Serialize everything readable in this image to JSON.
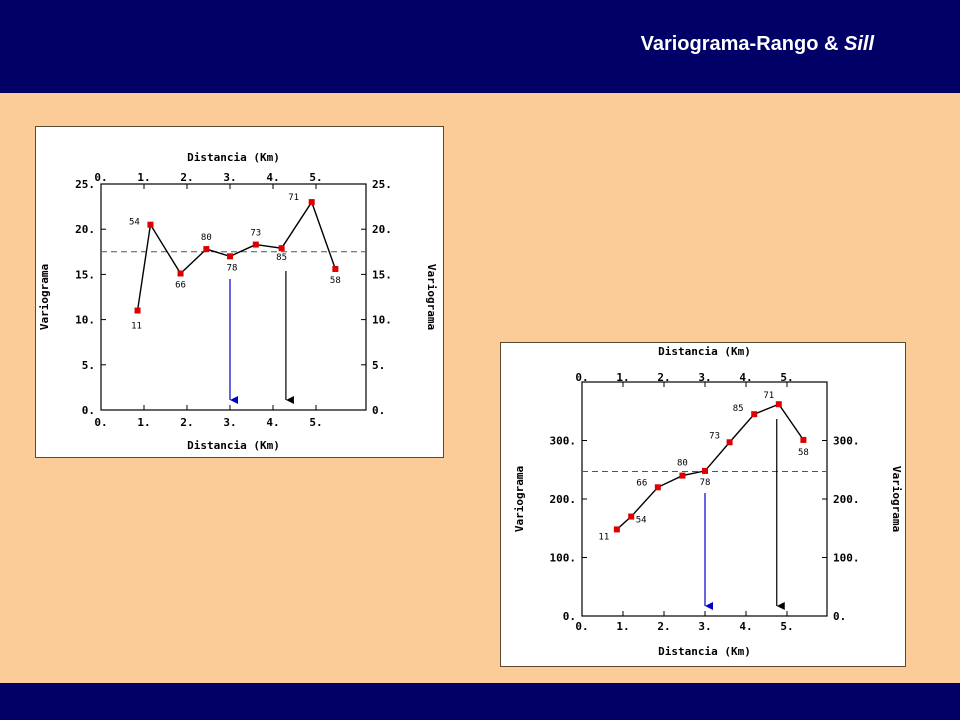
{
  "slide": {
    "title_main": "Variograma-Rango & ",
    "title_italic": "Sill"
  },
  "colors": {
    "header_bg": "#000066",
    "slide_bg": "#fccc98",
    "point": "#dd0000",
    "range_arrow": "#0000cc",
    "sill_arrow": "#000000"
  },
  "chart_data": [
    {
      "type": "line",
      "xlabel": "Distancia (Km)",
      "ylabel": "Variograma",
      "xlim": [
        0,
        6
      ],
      "ylim": [
        0,
        25
      ],
      "x_ticks": [
        "0.",
        "1.",
        "2.",
        "3.",
        "4.",
        "5."
      ],
      "y_ticks": [
        "0.",
        "5.",
        "10.",
        "15.",
        "20.",
        "25."
      ],
      "grid": false,
      "points": [
        {
          "x": 0.85,
          "y": 11.0,
          "label": "11"
        },
        {
          "x": 1.15,
          "y": 20.5,
          "label": "54"
        },
        {
          "x": 1.85,
          "y": 15.1,
          "label": "66"
        },
        {
          "x": 2.45,
          "y": 17.8,
          "label": "80"
        },
        {
          "x": 3.0,
          "y": 17.0,
          "label": "78"
        },
        {
          "x": 3.6,
          "y": 18.3,
          "label": "73"
        },
        {
          "x": 4.2,
          "y": 17.9,
          "label": "85"
        },
        {
          "x": 4.9,
          "y": 23.0,
          "label": "71"
        },
        {
          "x": 5.45,
          "y": 15.6,
          "label": "58"
        }
      ],
      "sill": 17.5,
      "arrows": [
        {
          "x": 3.0,
          "color": "blue"
        },
        {
          "x": 4.3,
          "color": "black"
        }
      ]
    },
    {
      "type": "line",
      "xlabel": "Distancia (Km)",
      "ylabel": "Variograma",
      "xlim": [
        0,
        6
      ],
      "ylim": [
        0,
        400
      ],
      "x_ticks": [
        "0.",
        "1.",
        "2.",
        "3.",
        "4.",
        "5."
      ],
      "y_ticks": [
        "0.",
        "100.",
        "200.",
        "300."
      ],
      "grid": false,
      "points": [
        {
          "x": 0.85,
          "y": 148,
          "label": "11"
        },
        {
          "x": 1.2,
          "y": 170,
          "label": "54"
        },
        {
          "x": 1.85,
          "y": 220,
          "label": "66"
        },
        {
          "x": 2.45,
          "y": 240,
          "label": "80"
        },
        {
          "x": 3.0,
          "y": 248,
          "label": "78"
        },
        {
          "x": 3.6,
          "y": 297,
          "label": "73"
        },
        {
          "x": 4.2,
          "y": 345,
          "label": "85"
        },
        {
          "x": 4.8,
          "y": 362,
          "label": "71"
        },
        {
          "x": 5.4,
          "y": 301,
          "label": "58"
        }
      ],
      "sill": 247,
      "arrows": [
        {
          "x": 3.0,
          "color": "blue"
        },
        {
          "x": 4.75,
          "color": "black"
        }
      ]
    }
  ]
}
